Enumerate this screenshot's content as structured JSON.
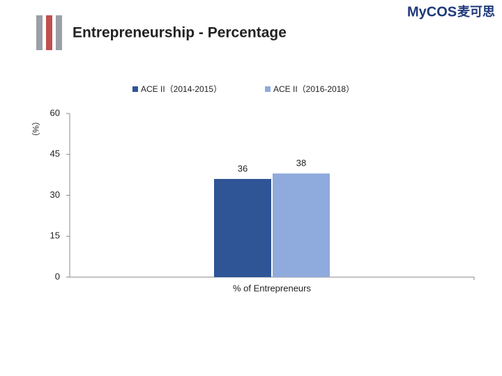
{
  "logo": {
    "brand": "MyCOS",
    "chinese": "麦可思"
  },
  "chart_data": {
    "type": "bar",
    "title": "Entrepreneurship - Percentage",
    "y_label": "（%）",
    "categories": [
      "% of Entrepreneurs"
    ],
    "series": [
      {
        "name": "ACE II（2014-2015）",
        "color": "#2f5597",
        "values": [
          36
        ]
      },
      {
        "name": "ACE II（2016-2018）",
        "color": "#8faadc",
        "values": [
          38
        ]
      }
    ],
    "ylim": [
      0,
      60
    ],
    "yticks": [
      0,
      15,
      30,
      45,
      60
    ],
    "grid": false,
    "legend": "top"
  }
}
